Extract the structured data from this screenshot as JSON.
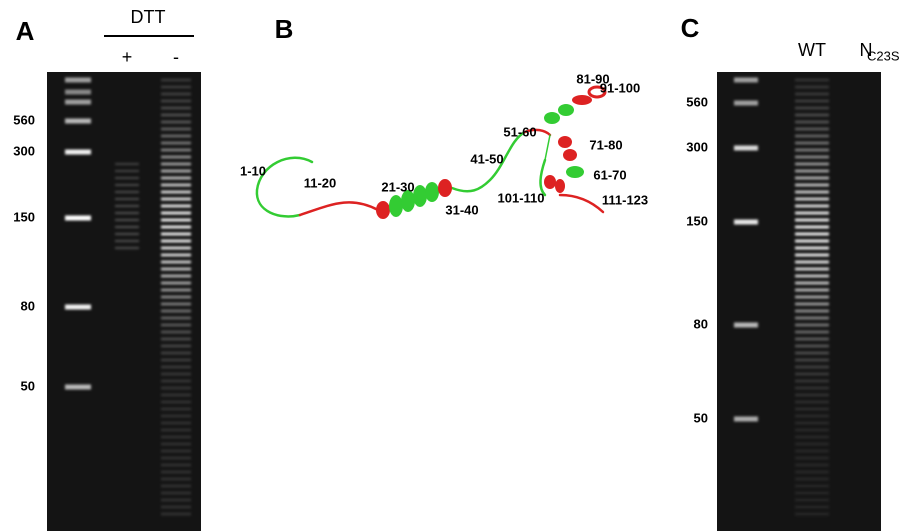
{
  "panels": [
    {
      "label": "A",
      "header": "DTT",
      "lanes": [
        "+",
        "-"
      ],
      "ladder": [
        "560",
        "300",
        "150",
        "80",
        "50"
      ]
    },
    {
      "label": "B",
      "segments": [
        "1-10",
        "11-20",
        "21-30",
        "31-40",
        "41-50",
        "51-60",
        "61-70",
        "71-80",
        "81-90",
        "91-100",
        "101-110",
        "111-123"
      ]
    },
    {
      "label": "C",
      "lanes": [
        "WT",
        {
          "main": "N",
          "sub": "C23S"
        }
      ],
      "ladder": [
        "560",
        "300",
        "150",
        "80",
        "50"
      ]
    }
  ]
}
